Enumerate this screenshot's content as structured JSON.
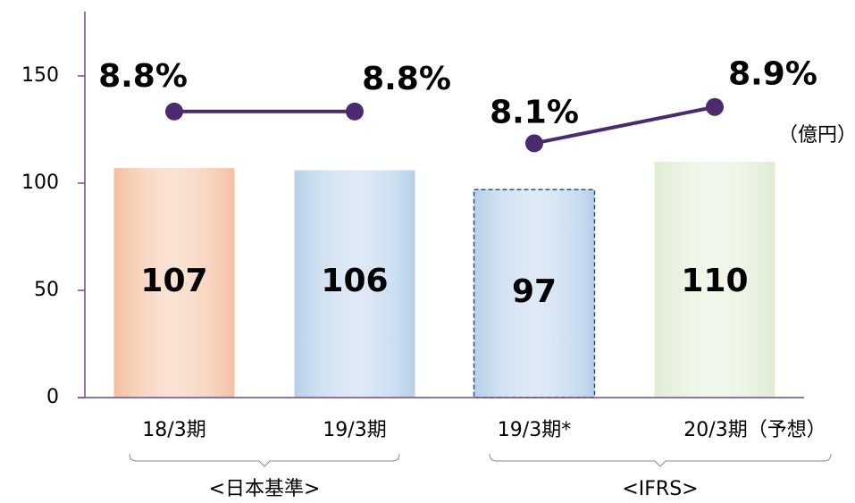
{
  "chart_data": {
    "type": "bar",
    "categories": [
      "18/3期",
      "19/3期",
      "19/3期*",
      "20/3期（予想）"
    ],
    "values": [
      107,
      106,
      97,
      110
    ],
    "bar_colors": [
      "#f4bf9f",
      "#b6d0ea",
      "#b6d0ea",
      "#dfedd3"
    ],
    "dashed": [
      false,
      false,
      true,
      false
    ],
    "ylim": [
      0,
      180
    ],
    "yticks": [
      0,
      50,
      100,
      150
    ],
    "unit": "（億円）",
    "line": {
      "values": [
        8.8,
        8.8,
        8.1,
        8.9
      ],
      "value_labels": [
        "8.8%",
        "8.8%",
        "8.1%",
        "8.9%"
      ],
      "color": "#4b2a6e",
      "axis": "y2"
    },
    "y2lim": [
      2.5,
      11
    ],
    "groups": [
      {
        "label": "<日本基準>",
        "from": 0,
        "to": 1
      },
      {
        "label": "<IFRS>",
        "from": 2,
        "to": 3
      }
    ]
  }
}
